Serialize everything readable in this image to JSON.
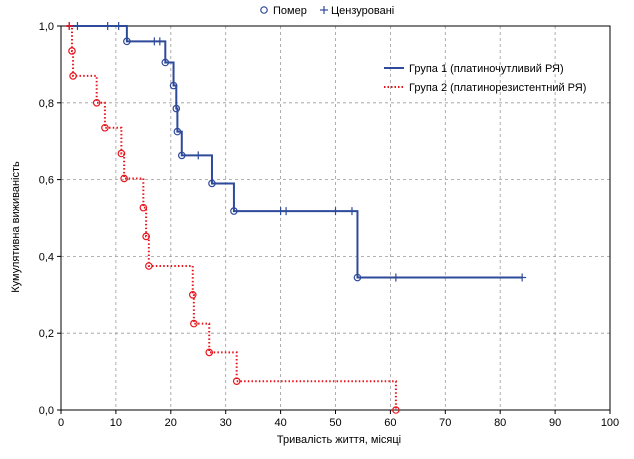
{
  "chart_data": {
    "type": "line",
    "chart_subtype": "kaplan-meier",
    "xlabel": "Тривалість життя, місяці",
    "ylabel": "Кумулятивна виживаність",
    "xlim": [
      0,
      100
    ],
    "ylim": [
      0,
      1
    ],
    "x_ticks": [
      0,
      10,
      20,
      30,
      40,
      50,
      60,
      70,
      80,
      90,
      100
    ],
    "x_tick_labels": [
      "0",
      "10",
      "20",
      "30",
      "40",
      "50",
      "60",
      "70",
      "80",
      "90",
      "100"
    ],
    "y_ticks": [
      0,
      0.2,
      0.4,
      0.6,
      0.8,
      1.0
    ],
    "y_tick_labels": [
      "0,0",
      "0,2",
      "0,4",
      "0,6",
      "0,8",
      "1,0"
    ],
    "grid": true,
    "marker_legend": {
      "position": "top-center",
      "items": [
        {
          "symbol": "circle",
          "label": "Помер"
        },
        {
          "symbol": "plus",
          "label": "Цензуровані"
        }
      ]
    },
    "series_legend": {
      "position": "top-right"
    },
    "series": [
      {
        "name": "Група 1 (платиночутливий РЯ)",
        "color": "#2e4a9a",
        "line_style": "solid",
        "steps": [
          [
            1,
            1.0
          ],
          [
            12,
            0.96
          ],
          [
            19,
            0.905
          ],
          [
            20.5,
            0.845
          ],
          [
            21,
            0.785
          ],
          [
            21.2,
            0.725
          ],
          [
            22,
            0.663
          ],
          [
            27.5,
            0.59
          ],
          [
            31.5,
            0.518
          ],
          [
            54,
            0.345
          ],
          [
            84,
            0.345
          ]
        ],
        "deaths": [
          [
            12,
            0.96
          ],
          [
            19,
            0.905
          ],
          [
            20.5,
            0.845
          ],
          [
            21,
            0.785
          ],
          [
            21.2,
            0.725
          ],
          [
            22,
            0.663
          ],
          [
            27.5,
            0.59
          ],
          [
            31.5,
            0.518
          ],
          [
            54,
            0.345
          ]
        ],
        "censored": [
          [
            1.5,
            1.0
          ],
          [
            3,
            1.0
          ],
          [
            8.5,
            1.0
          ],
          [
            10.5,
            1.0
          ],
          [
            17,
            0.96
          ],
          [
            18,
            0.96
          ],
          [
            25,
            0.663
          ],
          [
            41,
            0.518
          ],
          [
            40,
            0.518
          ],
          [
            50,
            0.518
          ],
          [
            53,
            0.518
          ],
          [
            61,
            0.345
          ],
          [
            84,
            0.345
          ]
        ]
      },
      {
        "name": "Група 2 (платинорезистентний РЯ)",
        "color": "#e8141c",
        "line_style": "dotted",
        "steps": [
          [
            1,
            1.0
          ],
          [
            2,
            0.935
          ],
          [
            2.2,
            0.87
          ],
          [
            6.5,
            0.8
          ],
          [
            8,
            0.735
          ],
          [
            11,
            0.668
          ],
          [
            11.5,
            0.603
          ],
          [
            15,
            0.527
          ],
          [
            15.5,
            0.452
          ],
          [
            16,
            0.375
          ],
          [
            24,
            0.3
          ],
          [
            24.2,
            0.225
          ],
          [
            27,
            0.15
          ],
          [
            32,
            0.075
          ],
          [
            61,
            0.0
          ]
        ],
        "deaths": [
          [
            2,
            0.935
          ],
          [
            2.2,
            0.87
          ],
          [
            6.5,
            0.8
          ],
          [
            8,
            0.735
          ],
          [
            11,
            0.668
          ],
          [
            11.5,
            0.603
          ],
          [
            15,
            0.527
          ],
          [
            15.5,
            0.452
          ],
          [
            16,
            0.375
          ],
          [
            24,
            0.3
          ],
          [
            24.2,
            0.225
          ],
          [
            27,
            0.15
          ],
          [
            32,
            0.075
          ],
          [
            61,
            0.0
          ]
        ],
        "censored": [
          [
            1.5,
            1.0
          ]
        ]
      }
    ]
  }
}
